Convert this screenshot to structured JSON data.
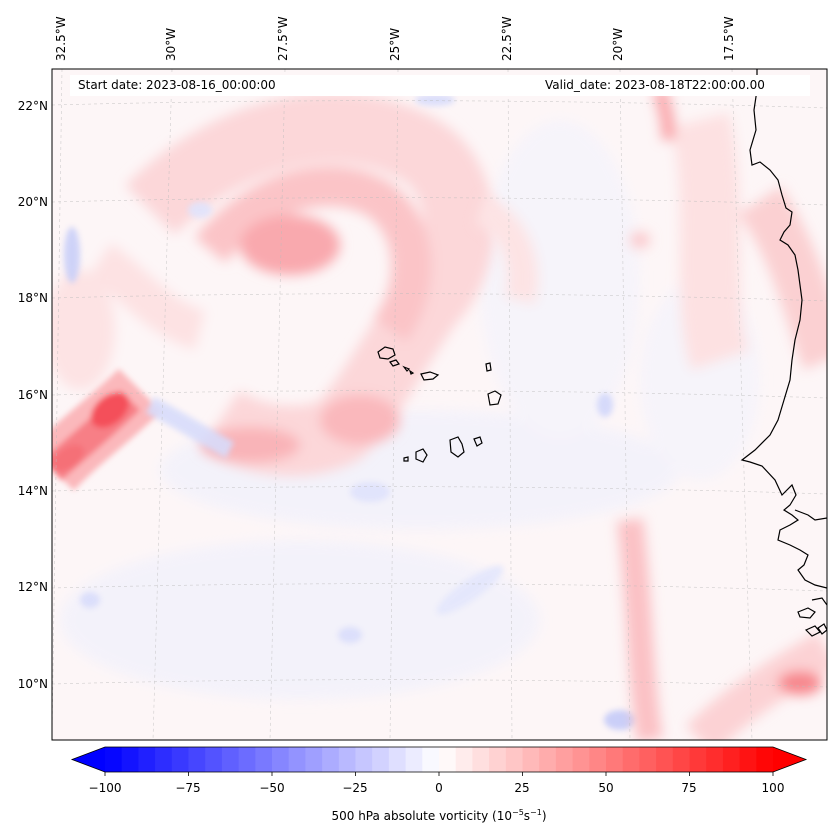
{
  "header": {
    "start_date": "Start date: 2023-08-16_00:00:00",
    "valid_date": "Valid_date: 2023-08-18T22:00:00.00"
  },
  "longitude_labels": [
    "32.5°W",
    "30°W",
    "27.5°W",
    "25°W",
    "22.5°W",
    "20°W",
    "17.5°W"
  ],
  "latitude_labels": [
    "22°N",
    "20°N",
    "18°N",
    "16°N",
    "14°N",
    "12°N",
    "10°N"
  ],
  "colorbar": {
    "ticks": [
      "−100",
      "−75",
      "−50",
      "−25",
      "0",
      "25",
      "50",
      "75",
      "100"
    ],
    "label_prefix": "500 hPa absolute vorticity (10",
    "label_exp1": "−5",
    "label_mid": "s",
    "label_exp2": "−1",
    "label_suffix": ")",
    "min": -100,
    "max": 100,
    "low_color": "#0000ff",
    "high_color": "#ff0000"
  },
  "features": {
    "coastline": "west-africa-coastline",
    "islands": "cape-verde-islands"
  }
}
